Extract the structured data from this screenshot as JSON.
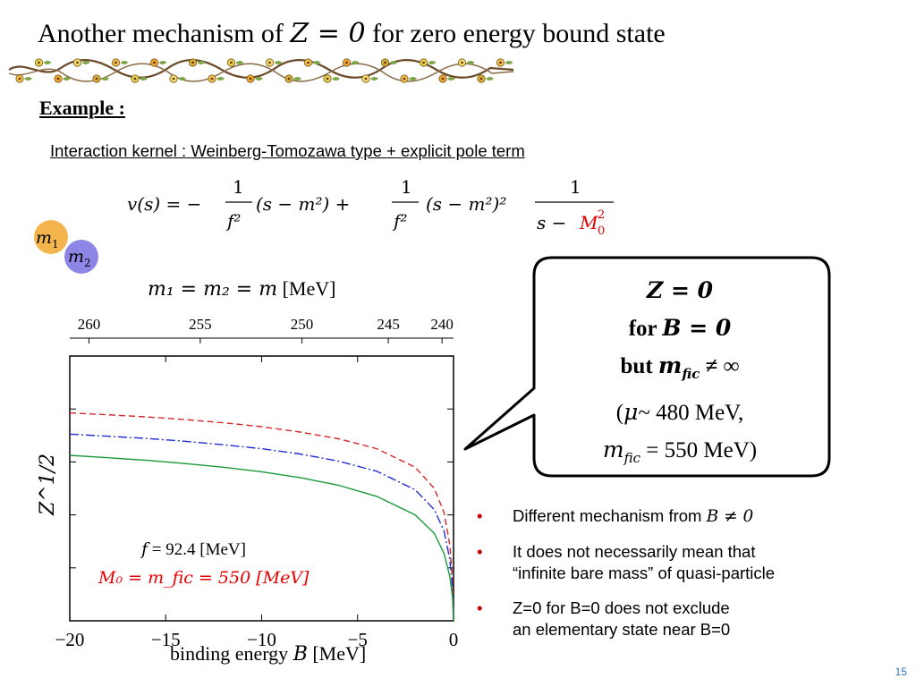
{
  "slide": {
    "title_pre": "Another mechanism of ",
    "title_math": "Z = 0",
    "title_post": " for zero energy bound state",
    "example_label": "Example :",
    "kernel_text": "Interaction kernel : Weinberg-Tomozawa type + explicit pole term",
    "formula": {
      "lhs": "v(s) = −",
      "num1": "1",
      "den1": "f²",
      "mid1": "(s − m²) +",
      "num2": "1",
      "den2": "f²",
      "mid2": "(s − m²)²",
      "num3": "1",
      "den3_a": "s − ",
      "den3_b": "M",
      "den3_sub": "0",
      "den3_sup": "2"
    },
    "particles": {
      "m1": "m",
      "m1_sub": "1",
      "m2": "m",
      "m2_sub": "2"
    },
    "mass_equation_math": "m₁ = m₂ = m",
    "mass_equation_unit": " [MeV]",
    "callout": {
      "line1": "Z = 0",
      "line2_pre": "for ",
      "line2_math": "B = 0",
      "line3_pre": "but ",
      "line3_math": "m",
      "line3_sub": "fic",
      "line3_post": " ≠ ∞",
      "line4_pre": "(",
      "line4_math": "μ",
      "line4_post": "~ 480 MeV,",
      "line5_math": "m",
      "line5_sub": "fic",
      "line5_post": " = 550 MeV)"
    },
    "bullets": [
      {
        "text": "Different mechanism from ",
        "math": "B ≠ 0"
      },
      {
        "text": "It does not necessarily mean that",
        "text2": "“infinite bare mass” of quasi-particle"
      },
      {
        "text": "Z=0 for B=0 does not exclude",
        "text2": "an elementary state near B=0"
      }
    ],
    "bullet_symbol": "•",
    "page_number": "15"
  },
  "chart_data": {
    "type": "line",
    "xlabel": "binding energy B [MeV]",
    "xlabel_pre": "binding energy ",
    "xlabel_math": "B",
    "xlabel_post": " [MeV]",
    "ylabel": "Z^1/2",
    "x_ticks": [
      -20,
      -15,
      -10,
      -5,
      0
    ],
    "x_tick_labels": [
      "−20",
      "−15",
      "−10",
      "−5",
      "0"
    ],
    "xlim": [
      -20,
      0
    ],
    "ylim": [
      0,
      1
    ],
    "top_axis_label": "m₁ = m₂ = m [MeV]",
    "top_axis_ticks": [
      {
        "label": "260",
        "B": -19.0
      },
      {
        "label": "255",
        "B": -13.2
      },
      {
        "label": "250",
        "B": -7.9
      },
      {
        "label": "245",
        "B": -3.4
      },
      {
        "label": "240",
        "B": -0.6
      }
    ],
    "annotation_line1": "f = 92.4 [MeV]",
    "annotation_line1_math": "f",
    "annotation_line1_rest": " = 92.4 [MeV]",
    "annotation_line2": "M₀ = m_fic = 550 [MeV]",
    "series": [
      {
        "color": "#d62728",
        "dash": "7,4",
        "x": [
          -20,
          -18,
          -16,
          -14,
          -12,
          -10,
          -8,
          -6,
          -4,
          -2,
          -1,
          -0.5,
          -0.2,
          -0.05,
          0
        ],
        "y": [
          0.785,
          0.778,
          0.77,
          0.76,
          0.748,
          0.733,
          0.713,
          0.688,
          0.65,
          0.58,
          0.5,
          0.41,
          0.29,
          0.16,
          0.0
        ]
      },
      {
        "color": "#1f2fd0",
        "dash": "10,3,2,3",
        "x": [
          -20,
          -18,
          -16,
          -14,
          -12,
          -10,
          -8,
          -6,
          -4,
          -2,
          -1,
          -0.5,
          -0.2,
          -0.05,
          0
        ],
        "y": [
          0.705,
          0.697,
          0.689,
          0.678,
          0.665,
          0.65,
          0.63,
          0.603,
          0.565,
          0.495,
          0.42,
          0.34,
          0.235,
          0.125,
          0.0
        ]
      },
      {
        "color": "#1a9a3a",
        "dash": "",
        "x": [
          -20,
          -18,
          -16,
          -14,
          -12,
          -10,
          -8,
          -6,
          -4,
          -2,
          -1,
          -0.5,
          -0.2,
          -0.05,
          0
        ],
        "y": [
          0.625,
          0.616,
          0.606,
          0.594,
          0.58,
          0.563,
          0.541,
          0.512,
          0.47,
          0.4,
          0.33,
          0.255,
          0.17,
          0.09,
          0.0
        ]
      }
    ]
  },
  "colors": {
    "accent_red": "#e60000",
    "bullet_red": "#c00000",
    "page_blue": "#2e75b6"
  },
  "icons": {
    "vine": "flower-vine-decoration"
  }
}
